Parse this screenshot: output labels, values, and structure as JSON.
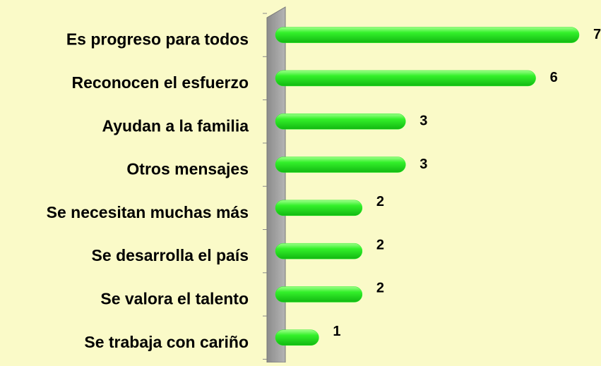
{
  "chart_data": {
    "type": "bar",
    "orientation": "horizontal",
    "categories": [
      "Es progreso para todos",
      "Reconocen el esfuerzo",
      "Ayudan a la familia",
      "Otros mensajes",
      "Se necesitan muchas más",
      "Se desarrolla el país",
      "Se valora el talento",
      "Se trabaja con cariño"
    ],
    "values": [
      7,
      6,
      3,
      3,
      2,
      2,
      2,
      1
    ],
    "color": "#22ee22"
  }
}
